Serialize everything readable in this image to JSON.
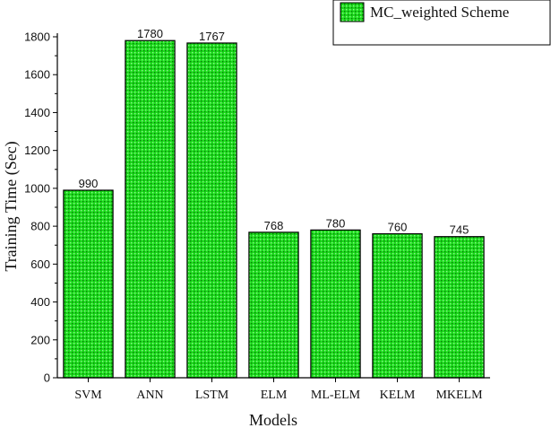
{
  "chart_data": {
    "type": "bar",
    "categories": [
      "SVM",
      "ANN",
      "LSTM",
      "ELM",
      "ML-ELM",
      "KELM",
      "MKELM"
    ],
    "series": [
      {
        "name": "MC_weighted Scheme",
        "values": [
          990,
          1780,
          1767,
          768,
          780,
          760,
          745
        ]
      }
    ],
    "data_labels": [
      "990",
      "1780",
      "1767",
      "768",
      "780",
      "760",
      "745"
    ],
    "xlabel": "Models",
    "ylabel": "Training Time (Sec)",
    "ylim": [
      0,
      1800
    ],
    "yticks": [
      0,
      200,
      400,
      600,
      800,
      1000,
      1200,
      1400,
      1600,
      1800
    ],
    "grid": false,
    "legend_position": "top-right",
    "bar_color": "#1cdc1c",
    "bar_pattern": "dotted-grid",
    "edge_color": "#000000"
  }
}
